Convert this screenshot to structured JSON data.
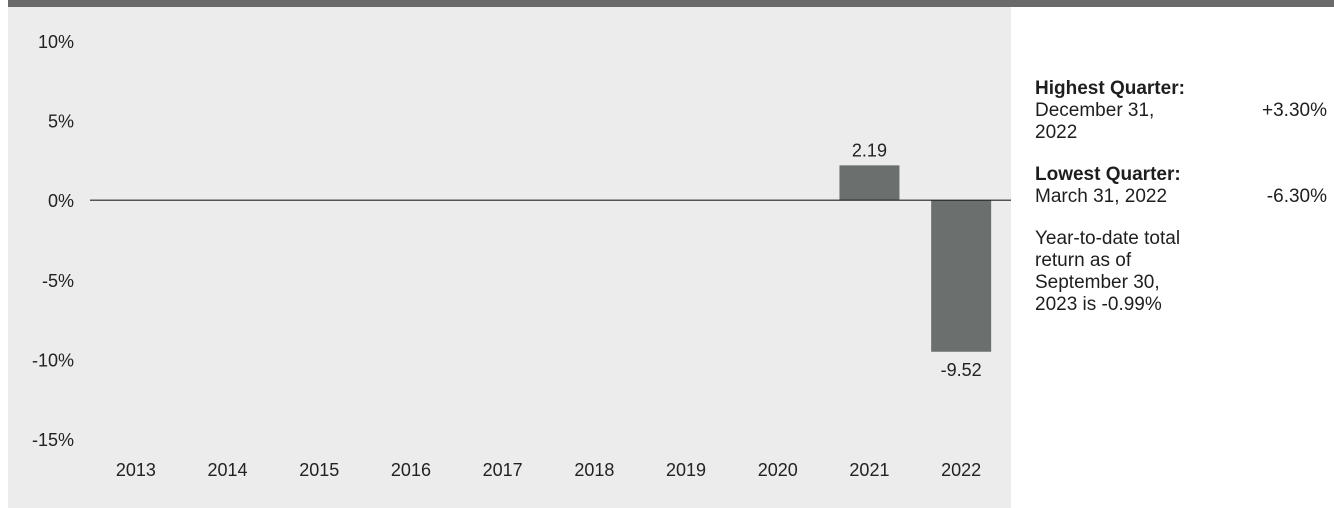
{
  "chart_data": {
    "type": "bar",
    "categories": [
      "2013",
      "2014",
      "2015",
      "2016",
      "2017",
      "2018",
      "2019",
      "2020",
      "2021",
      "2022"
    ],
    "values": [
      null,
      null,
      null,
      null,
      null,
      null,
      null,
      null,
      2.19,
      -9.52
    ],
    "value_labels": [
      "",
      "",
      "",
      "",
      "",
      "",
      "",
      "",
      "2.19",
      "-9.52"
    ],
    "ylim": [
      -15,
      10
    ],
    "yticks": [
      10,
      5,
      0,
      -5,
      -10,
      -15
    ],
    "ytick_labels": [
      "10%",
      "5%",
      "0%",
      "-5%",
      "-10%",
      "-15%"
    ],
    "bar_color": "#6b706e",
    "background": "#ececec",
    "grid": false,
    "title": "",
    "xlabel": "",
    "ylabel": ""
  },
  "sidebar": {
    "highest": {
      "heading": "Highest Quarter:",
      "date": "December 31, 2022",
      "value": "+3.30%"
    },
    "lowest": {
      "heading": "Lowest Quarter:",
      "date": "March 31, 2022",
      "value": "-6.30%"
    },
    "ytd_note": "Year-to-date total return as of September 30, 2023 is -0.99%"
  },
  "colors": {
    "top_rule": "#6a6a6a",
    "text": "#1e1e1e"
  }
}
